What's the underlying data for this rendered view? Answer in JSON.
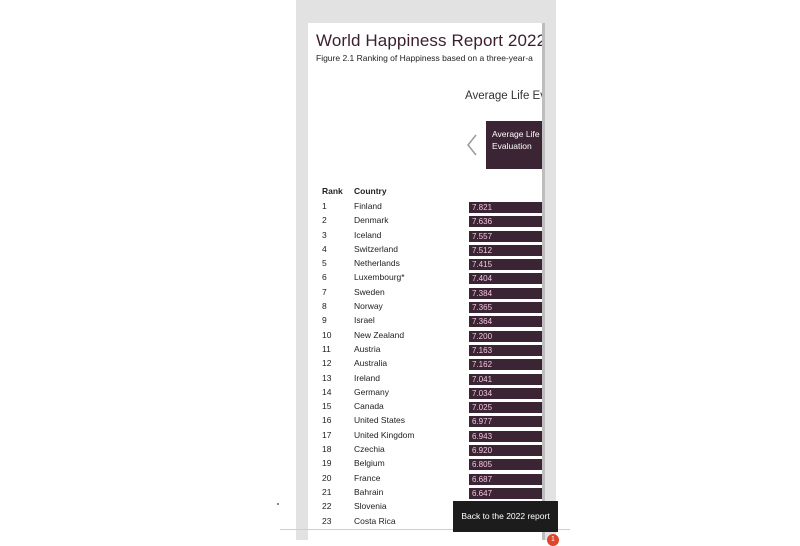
{
  "report": {
    "title": "World Happiness Report 2022",
    "subtitle": "Figure 2.1 Ranking of Happiness based on a three-year-a"
  },
  "metric": {
    "heading": "Average Life Ev",
    "selector_label": "Average Life Evaluation"
  },
  "table": {
    "headers": {
      "rank": "Rank",
      "country": "Country"
    },
    "rows": [
      {
        "rank": "1",
        "country": "Finland",
        "score": "7.821"
      },
      {
        "rank": "2",
        "country": "Denmark",
        "score": "7.636"
      },
      {
        "rank": "3",
        "country": "Iceland",
        "score": "7.557"
      },
      {
        "rank": "4",
        "country": "Switzerland",
        "score": "7.512"
      },
      {
        "rank": "5",
        "country": "Netherlands",
        "score": "7.415"
      },
      {
        "rank": "6",
        "country": "Luxembourg*",
        "score": "7.404"
      },
      {
        "rank": "7",
        "country": "Sweden",
        "score": "7.384"
      },
      {
        "rank": "8",
        "country": "Norway",
        "score": "7.365"
      },
      {
        "rank": "9",
        "country": "Israel",
        "score": "7.364"
      },
      {
        "rank": "10",
        "country": "New Zealand",
        "score": "7.200"
      },
      {
        "rank": "11",
        "country": "Austria",
        "score": "7.163"
      },
      {
        "rank": "12",
        "country": "Australia",
        "score": "7.162"
      },
      {
        "rank": "13",
        "country": "Ireland",
        "score": "7.041"
      },
      {
        "rank": "14",
        "country": "Germany",
        "score": "7.034"
      },
      {
        "rank": "15",
        "country": "Canada",
        "score": "7.025"
      },
      {
        "rank": "16",
        "country": "United States",
        "score": "6.977"
      },
      {
        "rank": "17",
        "country": "United Kingdom",
        "score": "6.943"
      },
      {
        "rank": "18",
        "country": "Czechia",
        "score": "6.920"
      },
      {
        "rank": "19",
        "country": "Belgium",
        "score": "6.805"
      },
      {
        "rank": "20",
        "country": "France",
        "score": "6.687"
      },
      {
        "rank": "21",
        "country": "Bahrain",
        "score": "6.647"
      },
      {
        "rank": "22",
        "country": "Slovenia",
        "score": ""
      },
      {
        "rank": "23",
        "country": "Costa Rica",
        "score": ""
      }
    ]
  },
  "back_button": {
    "label": "Back to the 2022 report"
  },
  "notification": {
    "count": "1"
  },
  "icons": {
    "prev_arrow": "chevron-left-icon"
  },
  "colors": {
    "bar": "#3b2433",
    "bar_text": "#f2c6e0",
    "title": "#3b1f2e"
  }
}
